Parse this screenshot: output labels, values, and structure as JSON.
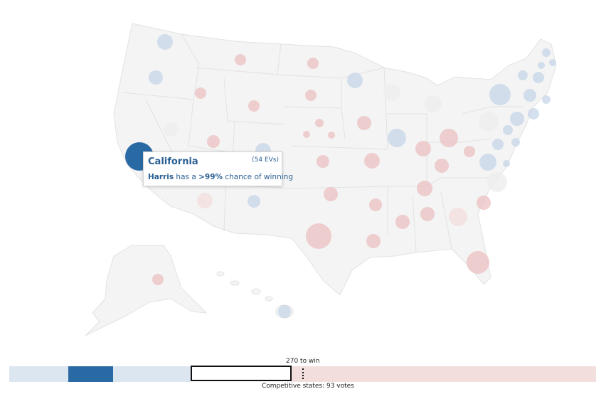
{
  "colors": {
    "dem_safe": "#2a6aa4",
    "dem_light": "#dce6f1",
    "rep_light": "#f3dede",
    "rep_mid": "#ebc0c0",
    "land": "#f4f4f4",
    "outline": "#e2e2e2"
  },
  "tooltip": {
    "state": "California",
    "evs": "(54 EVs)",
    "candidate": "Harris",
    "middle": " has a ",
    "chance": ">99%",
    "tail": " chance of winning"
  },
  "bar": {
    "win_label": "270 to win",
    "competitive_label": "Competitive states: 93 votes"
  },
  "chart_data": {
    "type": "electoral-map",
    "bubbles": [
      {
        "state": "Washington",
        "party": "dem",
        "strength": 0.3
      },
      {
        "state": "Oregon",
        "party": "dem",
        "strength": 0.3
      },
      {
        "state": "California",
        "party": "dem",
        "strength": 1.0
      },
      {
        "state": "Nevada",
        "party": "neutral",
        "strength": 0.1
      },
      {
        "state": "Idaho",
        "party": "rep",
        "strength": 0.3
      },
      {
        "state": "Montana",
        "party": "rep",
        "strength": 0.3
      },
      {
        "state": "Wyoming",
        "party": "rep",
        "strength": 0.3
      },
      {
        "state": "Utah",
        "party": "rep",
        "strength": 0.3
      },
      {
        "state": "Colorado",
        "party": "dem",
        "strength": 0.25
      },
      {
        "state": "Arizona",
        "party": "rep",
        "strength": 0.15
      },
      {
        "state": "New Mexico",
        "party": "dem",
        "strength": 0.3
      },
      {
        "state": "North Dakota",
        "party": "rep",
        "strength": 0.3
      },
      {
        "state": "South Dakota",
        "party": "rep",
        "strength": 0.3
      },
      {
        "state": "Nebraska",
        "party": "rep",
        "strength": 0.3
      },
      {
        "state": "Kansas",
        "party": "rep",
        "strength": 0.3
      },
      {
        "state": "Oklahoma",
        "party": "rep",
        "strength": 0.35
      },
      {
        "state": "Texas",
        "party": "rep",
        "strength": 0.35
      },
      {
        "state": "Minnesota",
        "party": "dem",
        "strength": 0.25
      },
      {
        "state": "Iowa",
        "party": "rep",
        "strength": 0.3
      },
      {
        "state": "Missouri",
        "party": "rep",
        "strength": 0.35
      },
      {
        "state": "Arkansas",
        "party": "rep",
        "strength": 0.35
      },
      {
        "state": "Louisiana",
        "party": "rep",
        "strength": 0.35
      },
      {
        "state": "Wisconsin",
        "party": "neutral",
        "strength": 0.1
      },
      {
        "state": "Illinois",
        "party": "dem",
        "strength": 0.35
      },
      {
        "state": "Michigan",
        "party": "neutral",
        "strength": 0.1
      },
      {
        "state": "Indiana",
        "party": "rep",
        "strength": 0.35
      },
      {
        "state": "Ohio",
        "party": "rep",
        "strength": 0.3
      },
      {
        "state": "Kentucky",
        "party": "rep",
        "strength": 0.35
      },
      {
        "state": "Tennessee",
        "party": "rep",
        "strength": 0.35
      },
      {
        "state": "Mississippi",
        "party": "rep",
        "strength": 0.35
      },
      {
        "state": "Alabama",
        "party": "rep",
        "strength": 0.35
      },
      {
        "state": "Georgia",
        "party": "rep",
        "strength": 0.12
      },
      {
        "state": "Florida",
        "party": "rep",
        "strength": 0.3
      },
      {
        "state": "South Carolina",
        "party": "rep",
        "strength": 0.35
      },
      {
        "state": "North Carolina",
        "party": "neutral",
        "strength": 0.1
      },
      {
        "state": "Virginia",
        "party": "dem",
        "strength": 0.3
      },
      {
        "state": "West Virginia",
        "party": "rep",
        "strength": 0.35
      },
      {
        "state": "Pennsylvania",
        "party": "neutral",
        "strength": 0.1
      },
      {
        "state": "New York",
        "party": "dem",
        "strength": 0.35
      },
      {
        "state": "Maine",
        "party": "dem",
        "strength": 0.3
      },
      {
        "state": "Alaska",
        "party": "rep",
        "strength": 0.3
      },
      {
        "state": "Hawaii",
        "party": "dem",
        "strength": 0.3
      }
    ],
    "segments": [
      {
        "group": "dem-light",
        "votes": 54
      },
      {
        "group": "dem-safe-highlight",
        "votes": 41
      },
      {
        "group": "dem-light",
        "votes": 71
      },
      {
        "group": "competitive",
        "votes": 93
      },
      {
        "group": "rep-light",
        "votes": 279
      }
    ]
  }
}
